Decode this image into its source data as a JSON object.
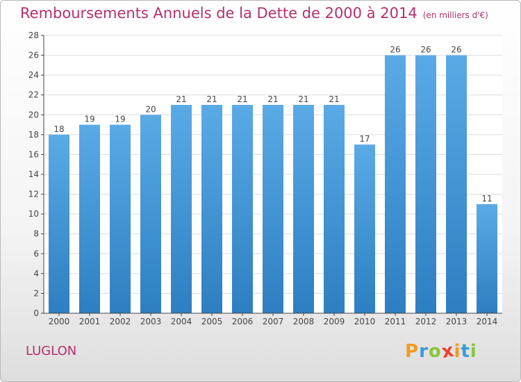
{
  "chart_data": {
    "type": "bar",
    "title": "Remboursements Annuels de la Dette de 2000 à 2014",
    "unit_label": "(en milliers d'€)",
    "categories": [
      "2000",
      "2001",
      "2002",
      "2003",
      "2004",
      "2005",
      "2006",
      "2007",
      "2008",
      "2009",
      "2010",
      "2011",
      "2012",
      "2013",
      "2014"
    ],
    "values": [
      18,
      19,
      19,
      20,
      21,
      21,
      21,
      21,
      21,
      21,
      17,
      26,
      26,
      26,
      11
    ],
    "ylim": [
      0,
      28
    ],
    "yticks": [
      0,
      2,
      4,
      6,
      8,
      10,
      12,
      14,
      16,
      18,
      20,
      22,
      24,
      26,
      28
    ],
    "grid": true,
    "bar_color_top": "#5aaae6",
    "bar_color_bottom": "#2d7fc1"
  },
  "footer": {
    "city": "LUGLON",
    "logo_text": "Proxiti",
    "logo_colors": [
      "#f39a1e",
      "#3a9ad9",
      "#8bc53f",
      "#e8432e",
      "#f39a1e",
      "#3a9ad9",
      "#8bc53f"
    ]
  },
  "colors": {
    "title": "#b5306c",
    "axis": "#444444",
    "grid": "#dcdcdc"
  }
}
